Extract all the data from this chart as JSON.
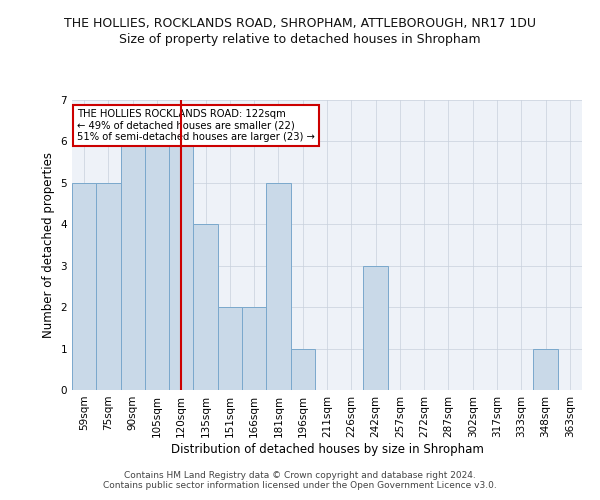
{
  "title": "THE HOLLIES, ROCKLANDS ROAD, SHROPHAM, ATTLEBOROUGH, NR17 1DU",
  "subtitle": "Size of property relative to detached houses in Shropham",
  "xlabel": "Distribution of detached houses by size in Shropham",
  "ylabel": "Number of detached properties",
  "categories": [
    "59sqm",
    "75sqm",
    "90sqm",
    "105sqm",
    "120sqm",
    "135sqm",
    "151sqm",
    "166sqm",
    "181sqm",
    "196sqm",
    "211sqm",
    "226sqm",
    "242sqm",
    "257sqm",
    "272sqm",
    "287sqm",
    "302sqm",
    "317sqm",
    "333sqm",
    "348sqm",
    "363sqm"
  ],
  "values": [
    5,
    5,
    6,
    6,
    6,
    4,
    2,
    2,
    5,
    1,
    0,
    0,
    3,
    0,
    0,
    0,
    0,
    0,
    0,
    1,
    0
  ],
  "bar_color": "#c9d9e8",
  "bar_edge_color": "#7aa8cc",
  "red_line_index": 4,
  "ylim": [
    0,
    7
  ],
  "yticks": [
    0,
    1,
    2,
    3,
    4,
    5,
    6,
    7
  ],
  "annotation_title": "THE HOLLIES ROCKLANDS ROAD: 122sqm",
  "annotation_line1": "← 49% of detached houses are smaller (22)",
  "annotation_line2": "51% of semi-detached houses are larger (23) →",
  "annotation_box_color": "#ffffff",
  "annotation_box_edge_color": "#cc0000",
  "title_fontsize": 9,
  "subtitle_fontsize": 9,
  "axis_label_fontsize": 8.5,
  "tick_fontsize": 7.5,
  "footer_text": "Contains HM Land Registry data © Crown copyright and database right 2024.\nContains public sector information licensed under the Open Government Licence v3.0.",
  "footer_fontsize": 6.5,
  "background_color": "#ffffff",
  "plot_bg_color": "#eef2f8",
  "grid_color": "#c8d0dc"
}
